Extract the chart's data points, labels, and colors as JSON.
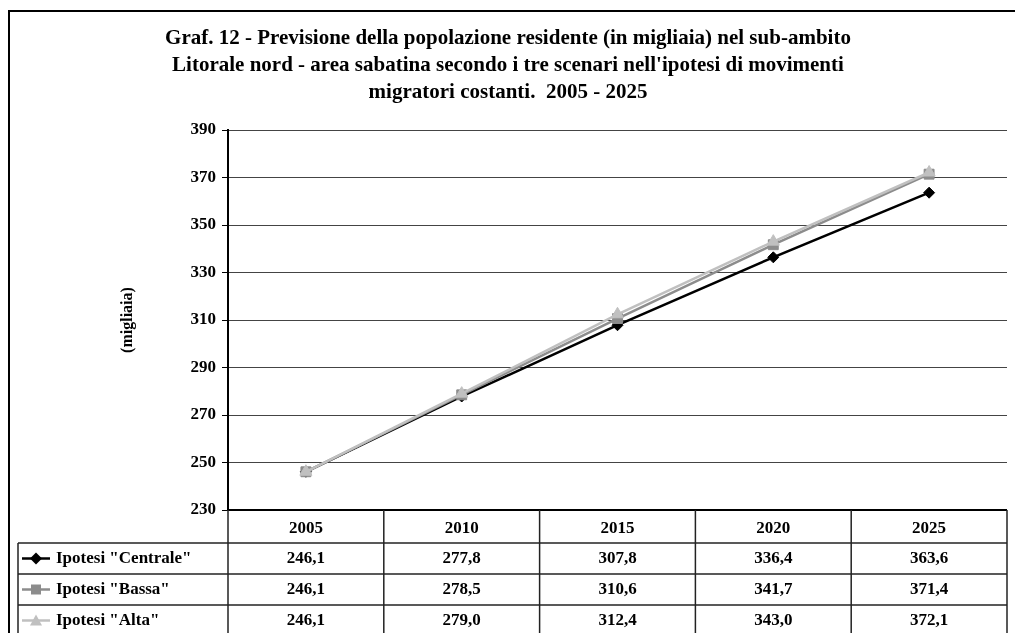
{
  "chart_data": {
    "type": "line",
    "title": "Graf. 12 - Previsione della popolazione residente (in migliaia) nel sub-ambito Litorale nord - area sabatina secondo i tre scenari nell'ipotesi di movimenti migratori costanti.  2005 - 2025",
    "ylabel": "(migliaia)",
    "categories": [
      "2005",
      "2010",
      "2015",
      "2020",
      "2025"
    ],
    "ylim": [
      230,
      390
    ],
    "yticks": [
      230,
      250,
      270,
      290,
      310,
      330,
      350,
      370,
      390
    ],
    "grid": "y",
    "legend": "bottom left",
    "line_style": "solid",
    "series": [
      {
        "name": "Ipotesi \"Centrale\"",
        "color": "#000000",
        "marker": "diamond",
        "values": [
          246.1,
          277.8,
          307.8,
          336.4,
          363.6
        ],
        "value_labels": [
          "246,1",
          "277,8",
          "307,8",
          "336,4",
          "363,6"
        ]
      },
      {
        "name": "Ipotesi \"Bassa\"",
        "color": "#8c8c8c",
        "marker": "square",
        "values": [
          246.1,
          278.5,
          310.6,
          341.7,
          371.4
        ],
        "value_labels": [
          "246,1",
          "278,5",
          "310,6",
          "341,7",
          "371,4"
        ]
      },
      {
        "name": "Ipotesi \"Alta\"",
        "color": "#c0c0c0",
        "marker": "triangle",
        "values": [
          246.1,
          279.0,
          312.4,
          343.0,
          372.1
        ],
        "value_labels": [
          "246,1",
          "279,0",
          "312,4",
          "343,0",
          "372,1"
        ]
      }
    ]
  }
}
